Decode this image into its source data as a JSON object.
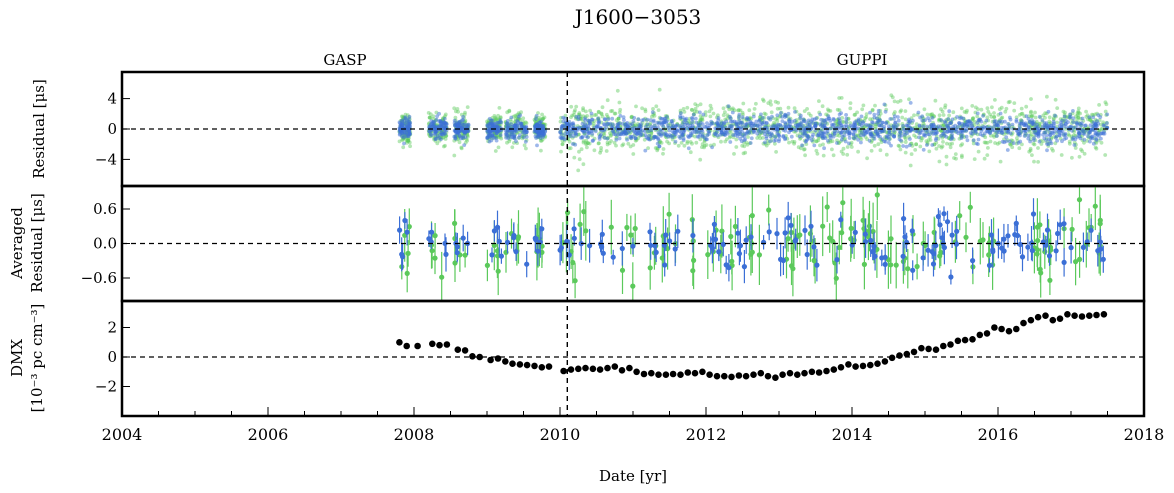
{
  "chart_data": [
    {
      "type": "scatter",
      "panel": "residual",
      "title": "J1600−3053",
      "ylabel": "Residual [μs]",
      "xlabel": "Date [yr]",
      "xlim": [
        2004,
        2018
      ],
      "ylim": [
        -7.5,
        7.5
      ],
      "yticks": [
        "4",
        "0",
        "−4"
      ],
      "ytick_values": [
        4,
        0,
        -4
      ],
      "xticks": [
        "2004",
        "2006",
        "2008",
        "2010",
        "2012",
        "2014",
        "2016",
        "2018"
      ],
      "xtick_values": [
        2004,
        2006,
        2008,
        2010,
        2012,
        2014,
        2016,
        2018
      ],
      "backend_labels": {
        "gasp": "GASP",
        "guppi": "GUPPI"
      },
      "backend_split_year": 2010.1,
      "zero_line": true,
      "series": [
        {
          "color": "#5bc95b",
          "spread_gasp": 2.2,
          "spread_guppi": 3.6
        },
        {
          "color": "#3b6fd6",
          "spread_gasp": 1.4,
          "spread_guppi": 2.0
        }
      ],
      "observing_epochs": [
        [
          2007.8,
          2007.95
        ],
        [
          2008.2,
          2008.45
        ],
        [
          2008.55,
          2008.75
        ],
        [
          2009.0,
          2009.2
        ],
        [
          2009.25,
          2009.55
        ],
        [
          2009.65,
          2009.8
        ],
        [
          2010.0,
          2017.5
        ]
      ]
    },
    {
      "type": "scatter",
      "panel": "averaged_residual",
      "ylabel_line1": "Averaged",
      "ylabel_line2": "Residual [μs]",
      "ylim": [
        -1.0,
        1.0
      ],
      "yticks": [
        "0.6",
        "0.0",
        "−0.6"
      ],
      "ytick_values": [
        0.6,
        0,
        -0.6
      ],
      "zero_line": true,
      "error_bars": true,
      "series": [
        {
          "color": "#5bc95b",
          "typical_error": 0.35
        },
        {
          "color": "#3b6fd6",
          "typical_error": 0.2
        }
      ]
    },
    {
      "type": "scatter",
      "panel": "dmx",
      "ylabel_line1": "DMX",
      "ylabel_line2": "[10⁻³ pc cm⁻³]",
      "ylim": [
        -4,
        3.8
      ],
      "yticks": [
        "2",
        "0",
        "−2"
      ],
      "ytick_values": [
        2,
        0,
        -2
      ],
      "zero_line": true,
      "series": [
        {
          "color": "#000000",
          "x": [
            2007.8,
            2007.9,
            2008.05,
            2008.25,
            2008.35,
            2008.45,
            2008.6,
            2008.7,
            2008.8,
            2008.9,
            2009.05,
            2009.15,
            2009.25,
            2009.35,
            2009.45,
            2009.55,
            2009.65,
            2009.75,
            2009.85,
            2010.05,
            2010.15,
            2010.25,
            2010.35,
            2010.45,
            2010.55,
            2010.65,
            2010.75,
            2010.85,
            2010.95,
            2011.05,
            2011.15,
            2011.25,
            2011.35,
            2011.45,
            2011.55,
            2011.65,
            2011.75,
            2011.85,
            2011.95,
            2012.05,
            2012.15,
            2012.25,
            2012.35,
            2012.45,
            2012.55,
            2012.65,
            2012.75,
            2012.85,
            2012.95,
            2013.05,
            2013.15,
            2013.25,
            2013.35,
            2013.45,
            2013.55,
            2013.65,
            2013.75,
            2013.85,
            2013.95,
            2014.05,
            2014.15,
            2014.25,
            2014.35,
            2014.45,
            2014.55,
            2014.65,
            2014.75,
            2014.85,
            2014.95,
            2015.05,
            2015.15,
            2015.25,
            2015.35,
            2015.45,
            2015.55,
            2015.65,
            2015.75,
            2015.85,
            2015.95,
            2016.05,
            2016.15,
            2016.25,
            2016.35,
            2016.45,
            2016.55,
            2016.65,
            2016.75,
            2016.85,
            2016.95,
            2017.05,
            2017.15,
            2017.25,
            2017.35,
            2017.45
          ],
          "y": [
            1.0,
            0.75,
            0.75,
            0.9,
            0.8,
            0.85,
            0.5,
            0.45,
            0.05,
            0.0,
            -0.2,
            -0.1,
            -0.3,
            -0.45,
            -0.5,
            -0.55,
            -0.6,
            -0.7,
            -0.65,
            -0.95,
            -0.85,
            -0.8,
            -0.75,
            -0.8,
            -0.85,
            -0.75,
            -0.65,
            -0.9,
            -0.75,
            -1.0,
            -1.15,
            -1.1,
            -1.2,
            -1.2,
            -1.15,
            -1.2,
            -1.05,
            -1.1,
            -1.0,
            -1.2,
            -1.3,
            -1.3,
            -1.35,
            -1.25,
            -1.3,
            -1.2,
            -1.1,
            -1.3,
            -1.4,
            -1.2,
            -1.1,
            -1.2,
            -1.1,
            -1.0,
            -1.05,
            -0.95,
            -0.85,
            -0.7,
            -0.5,
            -0.65,
            -0.6,
            -0.55,
            -0.45,
            -0.3,
            -0.05,
            0.1,
            0.2,
            0.35,
            0.6,
            0.55,
            0.5,
            0.75,
            0.85,
            1.1,
            1.15,
            1.2,
            1.5,
            1.6,
            2.0,
            1.9,
            1.75,
            1.9,
            2.3,
            2.5,
            2.7,
            2.8,
            2.5,
            2.6,
            2.9,
            2.8,
            2.75,
            2.8,
            2.85,
            2.9
          ]
        }
      ]
    }
  ]
}
